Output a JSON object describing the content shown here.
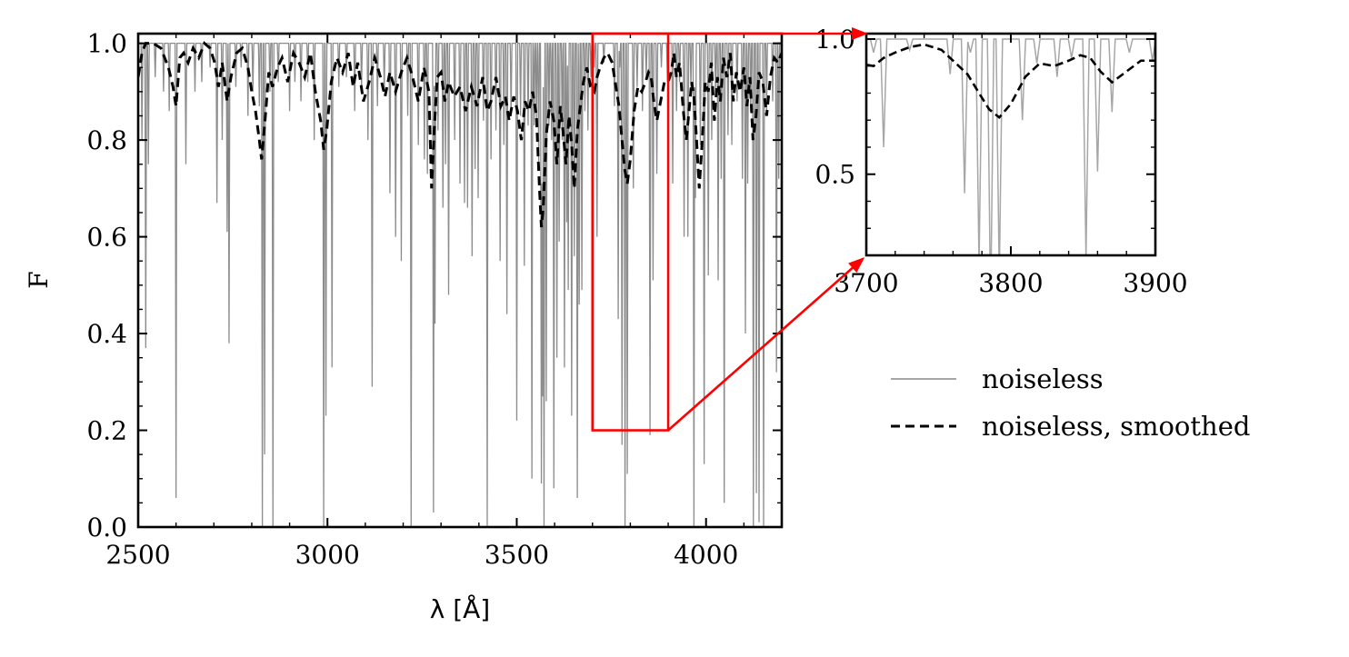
{
  "chart_data": [
    {
      "type": "line",
      "panel": "main",
      "xlabel": "λ [Å]",
      "ylabel": "F",
      "xlim": [
        2500,
        4200
      ],
      "ylim": [
        0.0,
        1.02
      ],
      "xticks": [
        2500,
        3000,
        3500,
        4000
      ],
      "xtick_labels": [
        "2500",
        "3000",
        "3500",
        "4000"
      ],
      "yticks": [
        0.0,
        0.2,
        0.4,
        0.6,
        0.8,
        1.0
      ],
      "ytick_labels": [
        "0.0",
        "0.2",
        "0.4",
        "0.6",
        "0.8",
        "1.0"
      ],
      "grid": false,
      "zoom_box": {
        "x": [
          3700,
          3900
        ],
        "y": [
          0.2,
          1.02
        ],
        "color": "#ff0000"
      },
      "series": [
        {
          "name": "noiseless",
          "style": "solid",
          "color": "#8c8c8c",
          "continuum": 1.0,
          "absorption_lines": [
            [
              2510,
              0.8
            ],
            [
              2520,
              0.37
            ],
            [
              2527,
              0.75
            ],
            [
              2545,
              0.93
            ],
            [
              2567,
              0.9
            ],
            [
              2582,
              0.86
            ],
            [
              2600,
              0.06
            ],
            [
              2626,
              0.75
            ],
            [
              2650,
              0.9
            ],
            [
              2668,
              0.92
            ],
            [
              2690,
              0.95
            ],
            [
              2708,
              0.67
            ],
            [
              2722,
              0.8
            ],
            [
              2735,
              0.61
            ],
            [
              2740,
              0.38
            ],
            [
              2758,
              0.91
            ],
            [
              2772,
              0.95
            ],
            [
              2790,
              0.85
            ],
            [
              2803,
              0.9
            ],
            [
              2820,
              0.87
            ],
            [
              2828,
              0.0
            ],
            [
              2834,
              0.15
            ],
            [
              2848,
              0.9
            ],
            [
              2856,
              0.0
            ],
            [
              2870,
              0.92
            ],
            [
              2900,
              0.86
            ],
            [
              2914,
              0.92
            ],
            [
              2930,
              0.88
            ],
            [
              2948,
              0.92
            ],
            [
              2965,
              0.8
            ],
            [
              2990,
              0.0
            ],
            [
              2996,
              0.23
            ],
            [
              3012,
              0.33
            ],
            [
              3030,
              0.91
            ],
            [
              3050,
              0.93
            ],
            [
              3072,
              0.86
            ],
            [
              3090,
              0.91
            ],
            [
              3107,
              0.8
            ],
            [
              3118,
              0.29
            ],
            [
              3132,
              0.87
            ],
            [
              3150,
              0.9
            ],
            [
              3165,
              0.69
            ],
            [
              3180,
              0.6
            ],
            [
              3195,
              0.55
            ],
            [
              3212,
              0.85
            ],
            [
              3221,
              0.0
            ],
            [
              3240,
              0.79
            ],
            [
              3256,
              0.76
            ],
            [
              3264,
              0.73
            ],
            [
              3280,
              0.03
            ],
            [
              3284,
              0.42
            ],
            [
              3292,
              0.82
            ],
            [
              3305,
              0.66
            ],
            [
              3312,
              0.75
            ],
            [
              3320,
              0.48
            ],
            [
              3336,
              0.8
            ],
            [
              3350,
              0.71
            ],
            [
              3362,
              0.67
            ],
            [
              3370,
              0.66
            ],
            [
              3382,
              0.56
            ],
            [
              3390,
              0.74
            ],
            [
              3398,
              0.68
            ],
            [
              3412,
              0.84
            ],
            [
              3422,
              0.0
            ],
            [
              3432,
              0.76
            ],
            [
              3445,
              0.82
            ],
            [
              3456,
              0.55
            ],
            [
              3466,
              0.79
            ],
            [
              3474,
              0.44
            ],
            [
              3485,
              0.85
            ],
            [
              3500,
              0.22
            ],
            [
              3510,
              0.85
            ],
            [
              3520,
              0.54
            ],
            [
              3530,
              0.83
            ],
            [
              3540,
              0.1
            ],
            [
              3546,
              0.83
            ],
            [
              3552,
              0.84
            ],
            [
              3558,
              0.75
            ],
            [
              3565,
              0.09
            ],
            [
              3568,
              0.27
            ],
            [
              3572,
              0.0
            ],
            [
              3578,
              0.26
            ],
            [
              3585,
              0.83
            ],
            [
              3592,
              0.8
            ],
            [
              3598,
              0.08
            ],
            [
              3606,
              0.35
            ],
            [
              3612,
              0.59
            ],
            [
              3620,
              0.8
            ],
            [
              3626,
              0.33
            ],
            [
              3632,
              0.63
            ],
            [
              3636,
              0.49
            ],
            [
              3645,
              0.23
            ],
            [
              3652,
              0.56
            ],
            [
              3660,
              0.06
            ],
            [
              3665,
              0.46
            ],
            [
              3672,
              0.49
            ],
            [
              3680,
              0.86
            ],
            [
              3688,
              0.82
            ],
            [
              3696,
              0.93
            ],
            [
              3705,
              0.95
            ],
            [
              3712,
              0.6
            ],
            [
              3730,
              0.96
            ],
            [
              3758,
              0.87
            ],
            [
              3768,
              0.43
            ],
            [
              3772,
              0.95
            ],
            [
              3778,
              0.17
            ],
            [
              3786,
              0.0
            ],
            [
              3792,
              0.11
            ],
            [
              3808,
              0.7
            ],
            [
              3818,
              0.91
            ],
            [
              3832,
              0.86
            ],
            [
              3842,
              0.93
            ],
            [
              3852,
              0.19
            ],
            [
              3860,
              0.51
            ],
            [
              3870,
              0.73
            ],
            [
              3882,
              0.95
            ],
            [
              3898,
              0.92
            ],
            [
              3912,
              0.71
            ],
            [
              3922,
              0.86
            ],
            [
              3930,
              0.92
            ],
            [
              3942,
              0.6
            ],
            [
              3952,
              0.6
            ],
            [
              3960,
              0.91
            ],
            [
              3968,
              0.0
            ],
            [
              3972,
              0.68
            ],
            [
              3985,
              0.79
            ],
            [
              3995,
              0.13
            ],
            [
              4006,
              0.52
            ],
            [
              4015,
              0.8
            ],
            [
              4025,
              0.9
            ],
            [
              4032,
              0.51
            ],
            [
              4040,
              0.72
            ],
            [
              4048,
              0.05
            ],
            [
              4058,
              0.81
            ],
            [
              4068,
              0.79
            ],
            [
              4082,
              0.88
            ],
            [
              4096,
              0.72
            ],
            [
              4104,
              0.4
            ],
            [
              4110,
              0.71
            ],
            [
              4118,
              0.86
            ],
            [
              4125,
              0.0
            ],
            [
              4133,
              0.07
            ],
            [
              4140,
              0.01
            ],
            [
              4152,
              0.0
            ],
            [
              4160,
              0.86
            ],
            [
              4176,
              0.88
            ],
            [
              4186,
              0.32
            ],
            [
              4192,
              0.72
            ]
          ]
        },
        {
          "name": "noiseless, smoothed",
          "style": "dashed",
          "color": "#000000",
          "x": [
            2500,
            2510,
            2520,
            2528,
            2540,
            2560,
            2580,
            2592,
            2600,
            2610,
            2620,
            2632,
            2645,
            2660,
            2675,
            2690,
            2702,
            2712,
            2722,
            2735,
            2745,
            2760,
            2775,
            2790,
            2800,
            2810,
            2820,
            2826,
            2835,
            2845,
            2855,
            2868,
            2880,
            2895,
            2910,
            2925,
            2940,
            2955,
            2968,
            2982,
            2990,
            2998,
            3010,
            3025,
            3040,
            3055,
            3068,
            3080,
            3095,
            3110,
            3125,
            3140,
            3152,
            3165,
            3180,
            3195,
            3210,
            3225,
            3240,
            3255,
            3268,
            3275,
            3282,
            3290,
            3300,
            3310,
            3320,
            3335,
            3350,
            3365,
            3380,
            3395,
            3410,
            3422,
            3432,
            3445,
            3458,
            3470,
            3480,
            3492,
            3502,
            3512,
            3522,
            3532,
            3542,
            3552,
            3560,
            3565,
            3570,
            3578,
            3588,
            3598,
            3606,
            3615,
            3622,
            3630,
            3638,
            3645,
            3652,
            3660,
            3668,
            3676,
            3685,
            3695,
            3705,
            3712,
            3720,
            3730,
            3740,
            3752,
            3762,
            3770,
            3778,
            3785,
            3792,
            3800,
            3810,
            3820,
            3830,
            3840,
            3848,
            3855,
            3862,
            3870,
            3880,
            3890,
            3900,
            3908,
            3915,
            3922,
            3930,
            3940,
            3948,
            3955,
            3962,
            3968,
            3975,
            3982,
            3990,
            3998,
            4006,
            4014,
            4022,
            4030,
            4038,
            4046,
            4055,
            4064,
            4072,
            4080,
            4090,
            4100,
            4108,
            4116,
            4124,
            4132,
            4140,
            4150,
            4160,
            4170,
            4180,
            4190,
            4200
          ],
          "y": [
            0.93,
            0.98,
            1.0,
            1.0,
            1.0,
            0.99,
            0.95,
            0.91,
            0.87,
            0.97,
            0.98,
            0.96,
            0.99,
            0.97,
            1.0,
            0.99,
            0.96,
            0.91,
            0.96,
            0.88,
            0.93,
            0.98,
            0.99,
            0.95,
            0.9,
            0.86,
            0.8,
            0.76,
            0.84,
            0.94,
            0.91,
            0.95,
            0.97,
            0.92,
            0.98,
            0.96,
            0.93,
            0.98,
            0.9,
            0.84,
            0.78,
            0.82,
            0.92,
            0.97,
            0.94,
            0.98,
            0.91,
            0.96,
            0.88,
            0.92,
            0.97,
            0.93,
            0.89,
            0.94,
            0.9,
            0.94,
            0.97,
            0.93,
            0.88,
            0.95,
            0.9,
            0.7,
            0.82,
            0.93,
            0.94,
            0.88,
            0.92,
            0.89,
            0.91,
            0.86,
            0.91,
            0.87,
            0.93,
            0.86,
            0.88,
            0.93,
            0.87,
            0.89,
            0.84,
            0.89,
            0.86,
            0.8,
            0.88,
            0.86,
            0.9,
            0.85,
            0.7,
            0.62,
            0.66,
            0.81,
            0.88,
            0.84,
            0.75,
            0.87,
            0.82,
            0.75,
            0.85,
            0.79,
            0.7,
            0.82,
            0.87,
            0.92,
            0.95,
            0.91,
            0.9,
            0.93,
            0.95,
            0.97,
            0.98,
            0.96,
            0.91,
            0.87,
            0.8,
            0.74,
            0.71,
            0.76,
            0.86,
            0.91,
            0.9,
            0.92,
            0.94,
            0.93,
            0.88,
            0.84,
            0.88,
            0.92,
            0.92,
            0.94,
            0.98,
            0.93,
            0.96,
            0.86,
            0.8,
            0.86,
            0.92,
            0.89,
            0.8,
            0.7,
            0.8,
            0.92,
            0.9,
            0.96,
            0.84,
            0.93,
            0.88,
            0.97,
            0.93,
            0.98,
            0.88,
            0.94,
            0.9,
            0.95,
            0.87,
            0.93,
            0.8,
            0.85,
            0.94,
            0.92,
            0.85,
            0.93,
            0.97,
            0.96,
            0.98
          ]
        }
      ]
    },
    {
      "type": "line",
      "panel": "inset",
      "xlabel": "",
      "ylabel": "",
      "xlim": [
        3700,
        3900
      ],
      "ylim": [
        0.2,
        1.02
      ],
      "xticks": [
        3700,
        3800,
        3900
      ],
      "xtick_labels": [
        "3700",
        "3800",
        "3900"
      ],
      "yticks": [
        0.5,
        1.0
      ],
      "ytick_labels": [
        "0.5",
        "1.0"
      ],
      "grid": false,
      "series": [
        {
          "name": "noiseless",
          "style": "solid",
          "color": "#a6a6a6",
          "from_main_panel_series": 0
        },
        {
          "name": "noiseless, smoothed",
          "style": "dashed",
          "color": "#000000",
          "from_main_panel_series": 1
        }
      ]
    }
  ],
  "legend": {
    "placement": "right, below inset",
    "entries": [
      {
        "label": "noiseless",
        "style": "solid",
        "color": "#999999"
      },
      {
        "label": "noiseless, smoothed",
        "style": "dashed",
        "color": "#000000"
      }
    ]
  },
  "colors": {
    "zoom_indicator": "#ff0000",
    "axes": "#000000"
  }
}
